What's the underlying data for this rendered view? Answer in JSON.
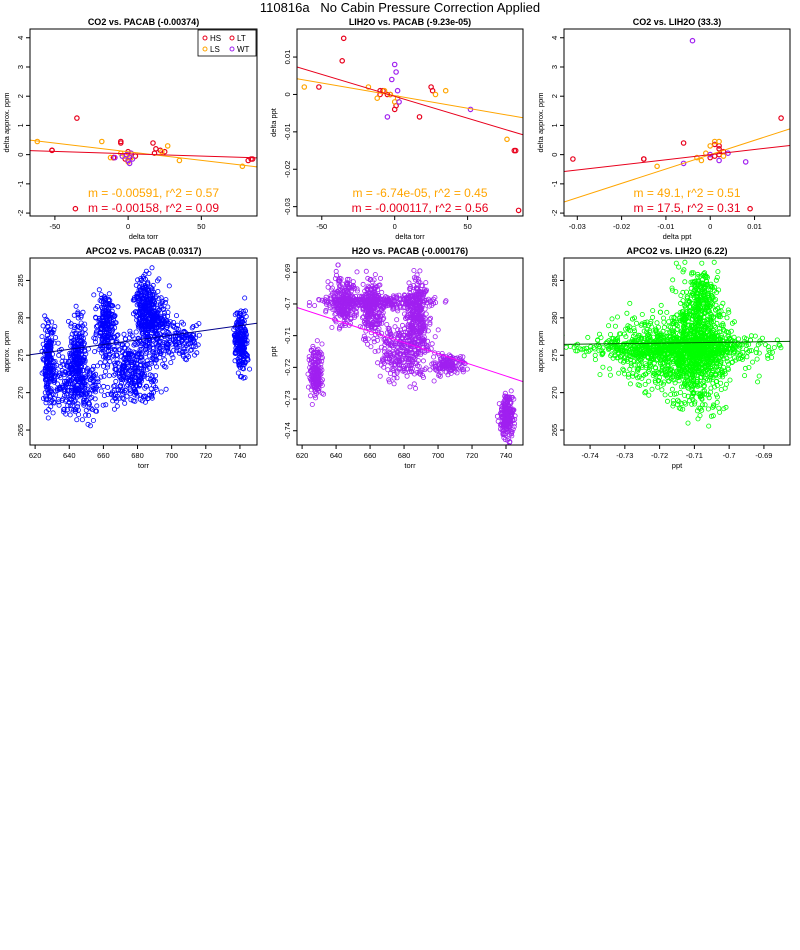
{
  "page": {
    "title": "110816a   No Cabin Pressure Correction Applied"
  },
  "legend": {
    "entries": [
      {
        "label": "HS",
        "color": "#e8001c"
      },
      {
        "label": "LT",
        "color": "#e8001c"
      },
      {
        "label": "LS",
        "color": "#ffa500"
      },
      {
        "label": "WT",
        "color": "#a020f0"
      }
    ]
  },
  "chart_data": [
    {
      "type": "scatter",
      "title": "CO2 vs. PACAB (-0.00374)",
      "xlabel": "delta torr",
      "ylabel": "delta approx. ppm",
      "xlim": [
        -67,
        88
      ],
      "ylim": [
        -2.1,
        4.3
      ],
      "xticks": [
        -50,
        0,
        50
      ],
      "yticks": [
        -2,
        -1,
        0,
        1,
        2,
        3,
        4
      ],
      "series": [
        {
          "name": "HS",
          "color": "#e8001c",
          "x": [
            -52,
            -10,
            -5,
            -2,
            0,
            1,
            5,
            18,
            25,
            82,
            84
          ],
          "y": [
            0.15,
            -0.1,
            0.4,
            -0.15,
            0.1,
            -0.1,
            -0.05,
            0.05,
            0.1,
            -0.2,
            -0.15
          ]
        },
        {
          "name": "LT",
          "color": "#e8001c",
          "x": [
            -52,
            -10,
            -5,
            19,
            22,
            85,
            -35,
            -36,
            17
          ],
          "y": [
            0.15,
            -0.1,
            0.45,
            0.2,
            0.15,
            -0.15,
            1.25,
            -1.85,
            0.4
          ]
        },
        {
          "name": "LS",
          "color": "#ffa500",
          "x": [
            -62,
            -18,
            -12,
            -5,
            -2,
            0,
            2,
            23,
            27,
            35,
            78
          ],
          "y": [
            0.45,
            0.45,
            -0.1,
            0.05,
            -0.05,
            -0.25,
            -0.1,
            0.1,
            0.3,
            -0.2,
            -0.4
          ]
        },
        {
          "name": "WT",
          "color": "#a020f0",
          "x": [
            -9,
            -4,
            -1,
            0,
            1,
            2,
            3
          ],
          "y": [
            -0.1,
            -0.05,
            0.0,
            -0.2,
            -0.3,
            0.05,
            -0.15
          ]
        }
      ],
      "fits": [
        {
          "color": "#ffa500",
          "slope": -0.00591,
          "intercept": 0.1
        },
        {
          "color": "#e8001c",
          "slope": -0.00158,
          "intercept": 0.03
        }
      ],
      "annotations": [
        {
          "text": "m = -0.00591, r^2 = 0.57",
          "color": "#ffa500"
        },
        {
          "text": "m = -0.00158, r^2 = 0.09",
          "color": "#e8001c"
        }
      ]
    },
    {
      "type": "scatter",
      "title": "LIH2O vs. PACAB (-9.23e-05)",
      "xlabel": "delta torr",
      "ylabel": "delta ppt",
      "xlim": [
        -67,
        88
      ],
      "ylim": [
        -0.0325,
        0.0175
      ],
      "xticks": [
        -50,
        0,
        50
      ],
      "yticks": [
        -0.03,
        -0.02,
        -0.01,
        0.0,
        0.01
      ],
      "series": [
        {
          "name": "HS",
          "color": "#e8001c",
          "x": [
            -52,
            -10,
            -8,
            -5,
            0,
            1,
            25,
            26,
            82,
            83
          ],
          "y": [
            0.002,
            0.0,
            0.001,
            0.0,
            -0.004,
            -0.003,
            0.002,
            0.001,
            -0.015,
            -0.015
          ]
        },
        {
          "name": "LT",
          "color": "#e8001c",
          "x": [
            -35,
            -36,
            17,
            85,
            -10,
            -3
          ],
          "y": [
            0.015,
            0.009,
            -0.006,
            -0.031,
            0.001,
            0.0
          ]
        },
        {
          "name": "LS",
          "color": "#ffa500",
          "x": [
            -62,
            -18,
            -12,
            -7,
            -3,
            0,
            2,
            28,
            35,
            77
          ],
          "y": [
            0.002,
            0.002,
            -0.001,
            0.001,
            0.0,
            -0.002,
            -0.001,
            0.0,
            0.001,
            -0.012
          ]
        },
        {
          "name": "WT",
          "color": "#a020f0",
          "x": [
            -5,
            -2,
            0,
            1,
            2,
            3,
            52
          ],
          "y": [
            -0.006,
            0.004,
            0.008,
            0.006,
            0.001,
            -0.002,
            -0.004
          ]
        }
      ],
      "fits": [
        {
          "color": "#ffa500",
          "slope": -6.74e-05,
          "intercept": -0.0003
        },
        {
          "color": "#e8001c",
          "slope": -0.000117,
          "intercept": -0.0005
        }
      ],
      "annotations": [
        {
          "text": "m = -6.74e-05, r^2 = 0.45",
          "color": "#ffa500"
        },
        {
          "text": "m = -0.000117, r^2 = 0.56",
          "color": "#e8001c"
        }
      ]
    },
    {
      "type": "scatter",
      "title": "CO2 vs. LIH2O (33.3)",
      "xlabel": "delta ppt",
      "ylabel": "delta approx. ppm",
      "xlim": [
        -0.033,
        0.018
      ],
      "ylim": [
        -2.1,
        4.3
      ],
      "xticks": [
        -0.03,
        -0.02,
        -0.01,
        0.0,
        0.01
      ],
      "yticks": [
        -2,
        -1,
        0,
        1,
        2,
        3,
        4
      ],
      "series": [
        {
          "name": "HS",
          "color": "#e8001c",
          "x": [
            -0.015,
            0.0,
            0.001,
            0.002,
            0.002,
            0.003,
            0.002,
            0.001
          ],
          "y": [
            -0.15,
            -0.1,
            0.35,
            0.3,
            0.2,
            0.1,
            0.0,
            -0.05
          ]
        },
        {
          "name": "LT",
          "color": "#e8001c",
          "x": [
            -0.031,
            0.016,
            0.009,
            -0.006,
            -0.015
          ],
          "y": [
            -0.15,
            1.25,
            -1.85,
            0.4,
            -0.15
          ]
        },
        {
          "name": "LS",
          "color": "#ffa500",
          "x": [
            -0.012,
            -0.003,
            -0.001,
            0.0,
            0.001,
            0.002,
            0.003,
            -0.002
          ],
          "y": [
            -0.4,
            -0.1,
            0.05,
            0.3,
            0.45,
            0.45,
            -0.05,
            -0.2
          ]
        },
        {
          "name": "WT",
          "color": "#a020f0",
          "x": [
            -0.004,
            -0.006,
            0.0,
            0.002,
            0.004,
            0.008
          ],
          "y": [
            3.9,
            -0.3,
            0.0,
            -0.2,
            0.05,
            -0.25
          ]
        }
      ],
      "fits": [
        {
          "color": "#ffa500",
          "slope": 49.1,
          "intercept": 0.0
        },
        {
          "color": "#e8001c",
          "slope": 17.5,
          "intercept": 0.0
        }
      ],
      "annotations": [
        {
          "text": "m = 49.1, r^2 = 0.51",
          "color": "#ffa500"
        },
        {
          "text": "m = 17.5, r^2 = 0.31",
          "color": "#e8001c"
        }
      ]
    },
    {
      "type": "scatter",
      "title": "APCO2 vs. PACAB (0.0317)",
      "xlabel": "torr",
      "ylabel": "approx. ppm",
      "xlim": [
        617,
        750
      ],
      "ylim": [
        263,
        288
      ],
      "xticks": [
        620,
        640,
        660,
        680,
        700,
        720,
        740
      ],
      "yticks": [
        265,
        270,
        275,
        280,
        285
      ],
      "color": "#0000ff",
      "fit": {
        "slope": 0.0317,
        "intercept": 255.5,
        "color": "#00008b"
      },
      "clusters": [
        {
          "x": [
            624,
            632
          ],
          "y": [
            268,
            280
          ],
          "n": 200
        },
        {
          "x": [
            628,
            660
          ],
          "y": [
            266,
            276
          ],
          "n": 300
        },
        {
          "x": [
            640,
            650
          ],
          "y": [
            270,
            281
          ],
          "n": 160
        },
        {
          "x": [
            655,
            668
          ],
          "y": [
            274,
            284
          ],
          "n": 220
        },
        {
          "x": [
            660,
            695
          ],
          "y": [
            268,
            278
          ],
          "n": 320
        },
        {
          "x": [
            678,
            692
          ],
          "y": [
            275,
            286
          ],
          "n": 320
        },
        {
          "x": [
            685,
            700
          ],
          "y": [
            274,
            284
          ],
          "n": 150
        },
        {
          "x": [
            695,
            718
          ],
          "y": [
            274,
            280
          ],
          "n": 120
        },
        {
          "x": [
            736,
            745
          ],
          "y": [
            272,
            282
          ],
          "n": 220
        }
      ]
    },
    {
      "type": "scatter",
      "title": "H2O vs. PACAB (-0.000176)",
      "xlabel": "torr",
      "ylabel": "ppt",
      "xlim": [
        617,
        750
      ],
      "ylim": [
        -0.7445,
        -0.6855
      ],
      "xticks": [
        620,
        640,
        660,
        680,
        700,
        720,
        740
      ],
      "yticks": [
        -0.74,
        -0.73,
        -0.72,
        -0.71,
        -0.7,
        -0.69
      ],
      "color": "#a020f0",
      "fit": {
        "slope": -0.000176,
        "intercept": -0.5925,
        "color": "#ff00ff"
      },
      "clusters": [
        {
          "x": [
            624,
            632
          ],
          "y": [
            -0.73,
            -0.713
          ],
          "n": 200
        },
        {
          "x": [
            628,
            700
          ],
          "y": [
            -0.702,
            -0.697
          ],
          "n": 300
        },
        {
          "x": [
            635,
            655
          ],
          "y": [
            -0.708,
            -0.69
          ],
          "n": 220
        },
        {
          "x": [
            655,
            668
          ],
          "y": [
            -0.712,
            -0.69
          ],
          "n": 220
        },
        {
          "x": [
            660,
            700
          ],
          "y": [
            -0.725,
            -0.705
          ],
          "n": 320
        },
        {
          "x": [
            680,
            695
          ],
          "y": [
            -0.715,
            -0.69
          ],
          "n": 300
        },
        {
          "x": [
            695,
            718
          ],
          "y": [
            -0.722,
            -0.716
          ],
          "n": 140
        },
        {
          "x": [
            736,
            745
          ],
          "y": [
            -0.743,
            -0.728
          ],
          "n": 220
        }
      ]
    },
    {
      "type": "scatter",
      "title": "APCO2 vs. LIH2O (6.22)",
      "xlabel": "ppt",
      "ylabel": "approx. ppm",
      "xlim": [
        -0.7475,
        -0.6825
      ],
      "ylim": [
        263,
        288
      ],
      "xticks": [
        -0.74,
        -0.73,
        -0.72,
        -0.71,
        -0.7,
        -0.69
      ],
      "yticks": [
        265,
        270,
        275,
        280,
        285
      ],
      "color": "#00ff00",
      "fit": {
        "slope": 6.22,
        "intercept": 281.1,
        "color": "#006400"
      },
      "clusters": [
        {
          "x": [
            -0.745,
            -0.685
          ],
          "y": [
            274,
            278
          ],
          "n": 600
        },
        {
          "x": [
            -0.735,
            -0.695
          ],
          "y": [
            270,
            281
          ],
          "n": 700
        },
        {
          "x": [
            -0.718,
            -0.7
          ],
          "y": [
            266,
            286
          ],
          "n": 600
        },
        {
          "x": [
            -0.712,
            -0.703
          ],
          "y": [
            279,
            287
          ],
          "n": 150
        }
      ]
    }
  ]
}
